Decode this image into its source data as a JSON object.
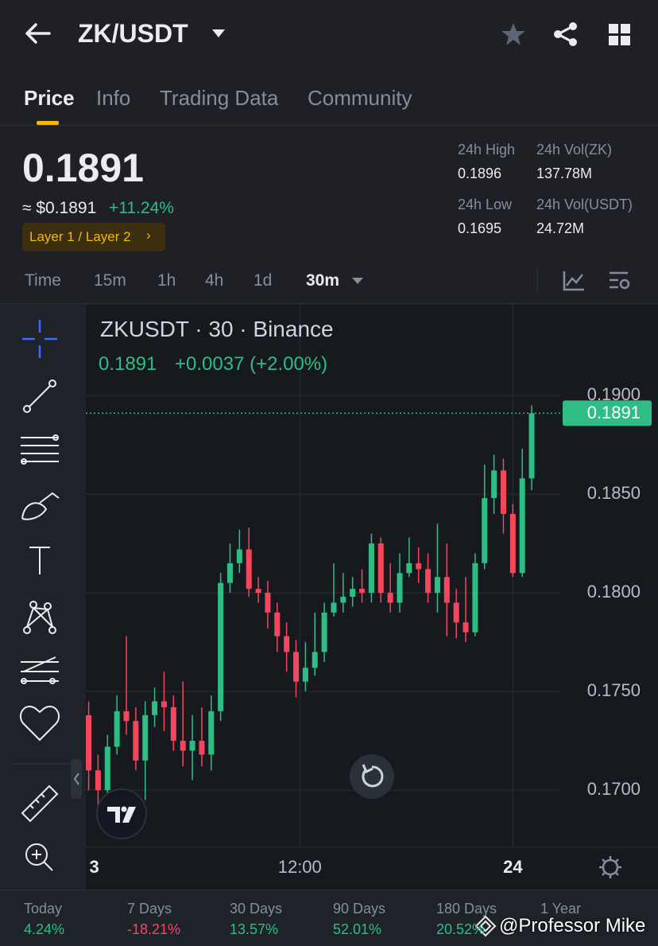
{
  "header": {
    "pair": "ZK/USDT"
  },
  "tabs": [
    "Price",
    "Info",
    "Trading Data",
    "Community"
  ],
  "price": {
    "last": "0.1891",
    "usd": "≈ $0.1891",
    "change": "+11.24%",
    "tag": "Layer 1 / Layer 2"
  },
  "stats": [
    {
      "label": "24h High",
      "value": "0.1896"
    },
    {
      "label": "24h Vol(ZK)",
      "value": "137.78M"
    },
    {
      "label": "24h Low",
      "value": "0.1695"
    },
    {
      "label": "24h Vol(USDT)",
      "value": "24.72M"
    }
  ],
  "timeframes": [
    "Time",
    "15m",
    "1h",
    "4h",
    "1d",
    "30m"
  ],
  "chart_data": {
    "type": "candlestick",
    "title": "ZKUSDT · 30 · Binance",
    "subtitle_price": "0.1891",
    "subtitle_change": "+0.0037 (+2.00%)",
    "open": [
      0.1738,
      0.171,
      0.17,
      0.1722,
      0.174,
      0.1735,
      0.1715,
      0.1738,
      0.1745,
      0.1742,
      0.1725,
      0.172,
      0.1725,
      0.1718,
      0.174,
      0.1805,
      0.1815,
      0.1822,
      0.1802,
      0.18,
      0.179,
      0.1778,
      0.177,
      0.1755,
      0.1762,
      0.177,
      0.179,
      0.1795,
      0.1798,
      0.1802,
      0.18,
      0.1825,
      0.18,
      0.1795,
      0.181,
      0.1815,
      0.1812,
      0.18,
      0.1808,
      0.1795,
      0.1785,
      0.178,
      0.1815,
      0.1848,
      0.1862,
      0.184,
      0.181,
      0.1858
    ],
    "high": [
      0.1745,
      0.1718,
      0.1728,
      0.1748,
      0.1778,
      0.1742,
      0.1745,
      0.1752,
      0.176,
      0.1748,
      0.1755,
      0.1738,
      0.1742,
      0.1748,
      0.181,
      0.1825,
      0.1832,
      0.1833,
      0.1808,
      0.1806,
      0.1795,
      0.1785,
      0.1776,
      0.1775,
      0.179,
      0.1795,
      0.1815,
      0.181,
      0.1808,
      0.1812,
      0.183,
      0.1828,
      0.1815,
      0.182,
      0.1828,
      0.1823,
      0.182,
      0.1835,
      0.1825,
      0.1802,
      0.1808,
      0.182,
      0.1865,
      0.187,
      0.1868,
      0.1845,
      0.1873,
      0.1895
    ],
    "low": [
      0.17,
      0.1692,
      0.1695,
      0.1718,
      0.1728,
      0.171,
      0.1695,
      0.1732,
      0.173,
      0.172,
      0.1712,
      0.1705,
      0.1712,
      0.171,
      0.1735,
      0.18,
      0.181,
      0.1798,
      0.1795,
      0.1782,
      0.177,
      0.176,
      0.1747,
      0.175,
      0.1758,
      0.1765,
      0.1788,
      0.179,
      0.1793,
      0.1795,
      0.1795,
      0.1795,
      0.179,
      0.179,
      0.1808,
      0.1805,
      0.1795,
      0.179,
      0.1778,
      0.1777,
      0.1775,
      0.1778,
      0.1812,
      0.184,
      0.183,
      0.1808,
      0.1808,
      0.1852
    ],
    "close": [
      0.171,
      0.17,
      0.1722,
      0.174,
      0.1735,
      0.1715,
      0.1738,
      0.1745,
      0.1742,
      0.1725,
      0.172,
      0.1725,
      0.1718,
      0.174,
      0.1805,
      0.1815,
      0.1822,
      0.1802,
      0.18,
      0.179,
      0.1778,
      0.177,
      0.1755,
      0.1762,
      0.177,
      0.179,
      0.1795,
      0.1798,
      0.1802,
      0.18,
      0.1825,
      0.18,
      0.1795,
      0.181,
      0.1815,
      0.1812,
      0.18,
      0.1808,
      0.1795,
      0.1785,
      0.178,
      0.1815,
      0.1848,
      0.1862,
      0.184,
      0.181,
      0.1858,
      0.1891
    ],
    "up_color": "#2ebd85",
    "down_color": "#f6465d",
    "last_price": 0.1891,
    "last_price_label": "0.1891",
    "ylim": [
      0.1671,
      0.1946
    ],
    "yticks": [
      {
        "value": 0.17,
        "label": "0.1700"
      },
      {
        "value": 0.175,
        "label": "0.1750"
      },
      {
        "value": 0.18,
        "label": "0.1800"
      },
      {
        "value": 0.185,
        "label": "0.1850"
      },
      {
        "value": 0.19,
        "label": "0.1900"
      }
    ],
    "xlim": [
      -0.3,
      60.4
    ],
    "xticks": [
      {
        "value": 0.6,
        "label": "3"
      },
      {
        "value": 22.4,
        "label": "12:00"
      },
      {
        "value": 45,
        "label": "24"
      }
    ],
    "grid": true
  },
  "performance": [
    {
      "label": "Today",
      "value": "4.24%"
    },
    {
      "label": "7 Days",
      "value": "-18.21%"
    },
    {
      "label": "30 Days",
      "value": "13.57%"
    },
    {
      "label": "90 Days",
      "value": "52.01%"
    },
    {
      "label": "180 Days",
      "value": "20.52%"
    },
    {
      "label": "1 Year",
      "value": ""
    }
  ],
  "watermark": "@Professor Mike"
}
